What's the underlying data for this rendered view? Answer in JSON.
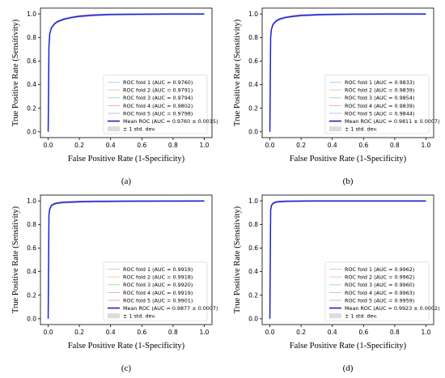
{
  "colors": {
    "mean": "#1f1fd8",
    "fold1": "#a9d3ee",
    "fold2": "#f6c6a2",
    "fold3": "#a9dcb0",
    "fold4": "#f2adad",
    "fold5": "#cbbadf",
    "band": "#dcdcdc"
  },
  "chart_data": [
    {
      "type": "line",
      "panel_label": "(a)",
      "xlabel": "False Positive Rate (1-Specificity)",
      "ylabel": "True Positive Rate (Sensitivity)",
      "xlim": [
        0,
        1
      ],
      "ylim": [
        0,
        1
      ],
      "xticks": [
        "0.0",
        "0.2",
        "0.4",
        "0.6",
        "0.8",
        "1.0"
      ],
      "yticks": [
        "0.0",
        "0.2",
        "0.4",
        "0.6",
        "0.8",
        "1.0"
      ],
      "legend_position": "lower-right",
      "series": [
        {
          "name": "ROC fold 1 (AUC = 0.9760)"
        },
        {
          "name": "ROC fold 2 (AUC = 0.9791)"
        },
        {
          "name": "ROC fold 3 (AUC = 0.9794)"
        },
        {
          "name": "ROC fold 4 (AUC = 0.9802)"
        },
        {
          "name": "ROC fold 5 (AUC = 0.9798)"
        },
        {
          "name": "Mean ROC (AUC = 0.9760 ± 0.0015)",
          "x": [
            0,
            0.005,
            0.01,
            0.02,
            0.04,
            0.06,
            0.1,
            0.15,
            0.2,
            0.3,
            0.4,
            0.5,
            0.6,
            0.7,
            0.8,
            0.9,
            1.0
          ],
          "y": [
            0,
            0.72,
            0.83,
            0.88,
            0.915,
            0.935,
            0.955,
            0.97,
            0.98,
            0.99,
            0.995,
            0.997,
            0.998,
            0.999,
            1.0,
            1.0,
            1.0
          ]
        },
        {
          "name": "± 1 std. dev."
        }
      ]
    },
    {
      "type": "line",
      "panel_label": "(b)",
      "xlabel": "False Positive Rate (1-Specificity)",
      "ylabel": "True Positive Rate (Sensitivity)",
      "xlim": [
        0,
        1
      ],
      "ylim": [
        0,
        1
      ],
      "xticks": [
        "0.0",
        "0.2",
        "0.4",
        "0.6",
        "0.8",
        "1.0"
      ],
      "yticks": [
        "0.0",
        "0.2",
        "0.4",
        "0.6",
        "0.8",
        "1.0"
      ],
      "legend_position": "lower-right",
      "series": [
        {
          "name": "ROC fold 1 (AUC = 0.9833)"
        },
        {
          "name": "ROC fold 2 (AUC = 0.9839)"
        },
        {
          "name": "ROC fold 3 (AUC = 0.9854)"
        },
        {
          "name": "ROC fold 4 (AUC = 0.9839)"
        },
        {
          "name": "ROC fold 5 (AUC = 0.9844)"
        },
        {
          "name": "Mean ROC (AUC = 0.9811 ± 0.0007)",
          "x": [
            0,
            0.005,
            0.01,
            0.02,
            0.04,
            0.06,
            0.1,
            0.15,
            0.2,
            0.3,
            0.4,
            0.5,
            0.6,
            0.8,
            1.0
          ],
          "y": [
            0,
            0.8,
            0.87,
            0.91,
            0.94,
            0.955,
            0.97,
            0.98,
            0.987,
            0.993,
            0.996,
            0.998,
            0.999,
            1.0,
            1.0
          ]
        },
        {
          "name": "± 1 std. dev."
        }
      ]
    },
    {
      "type": "line",
      "panel_label": "(c)",
      "xlabel": "False Positive Rate (1-Specificity)",
      "ylabel": "True Positive Rate (Sensitivity)",
      "xlim": [
        0,
        1
      ],
      "ylim": [
        0,
        1
      ],
      "xticks": [
        "0.0",
        "0.2",
        "0.4",
        "0.6",
        "0.8",
        "1.0"
      ],
      "yticks": [
        "0.0",
        "0.2",
        "0.4",
        "0.6",
        "0.8",
        "1.0"
      ],
      "legend_position": "lower-right",
      "series": [
        {
          "name": "ROC fold 1 (AUC = 0.9919)"
        },
        {
          "name": "ROC fold 2 (AUC = 0.9918)"
        },
        {
          "name": "ROC fold 3 (AUC = 0.9920)"
        },
        {
          "name": "ROC fold 4 (AUC = 0.9919)"
        },
        {
          "name": "ROC fold 5 (AUC = 0.9901)"
        },
        {
          "name": "Mean ROC (AUC = 0.9877 ± 0.0007)",
          "x": [
            0,
            0.005,
            0.01,
            0.02,
            0.04,
            0.06,
            0.1,
            0.2,
            0.3,
            0.5,
            0.7,
            1.0
          ],
          "y": [
            0,
            0.88,
            0.93,
            0.96,
            0.975,
            0.982,
            0.988,
            0.993,
            0.996,
            0.998,
            0.999,
            1.0
          ]
        },
        {
          "name": "± 1 std. dev."
        }
      ]
    },
    {
      "type": "line",
      "panel_label": "(d)",
      "xlabel": "False Positive Rate (1-Specificity)",
      "ylabel": "True Positive Rate (Sensitivity)",
      "xlim": [
        0,
        1
      ],
      "ylim": [
        0,
        1
      ],
      "xticks": [
        "0.0",
        "0.2",
        "0.4",
        "0.6",
        "0.8",
        "1.0"
      ],
      "yticks": [
        "0.0",
        "0.2",
        "0.4",
        "0.6",
        "0.8",
        "1.0"
      ],
      "legend_position": "lower-right",
      "series": [
        {
          "name": "ROC fold 1 (AUC = 0.9962)"
        },
        {
          "name": "ROC fold 2 (AUC = 0.9962)"
        },
        {
          "name": "ROC fold 3 (AUC = 0.9960)"
        },
        {
          "name": "ROC fold 4 (AUC = 0.9963)"
        },
        {
          "name": "ROC fold 5 (AUC = 0.9959)"
        },
        {
          "name": "Mean ROC (AUC = 0.9923 ± 0.0002)",
          "x": [
            0,
            0.005,
            0.01,
            0.02,
            0.04,
            0.06,
            0.1,
            0.2,
            0.3,
            0.5,
            1.0
          ],
          "y": [
            0,
            0.92,
            0.96,
            0.98,
            0.99,
            0.994,
            0.997,
            0.999,
            1.0,
            1.0,
            1.0
          ]
        },
        {
          "name": "± 1 std. dev."
        }
      ]
    }
  ]
}
